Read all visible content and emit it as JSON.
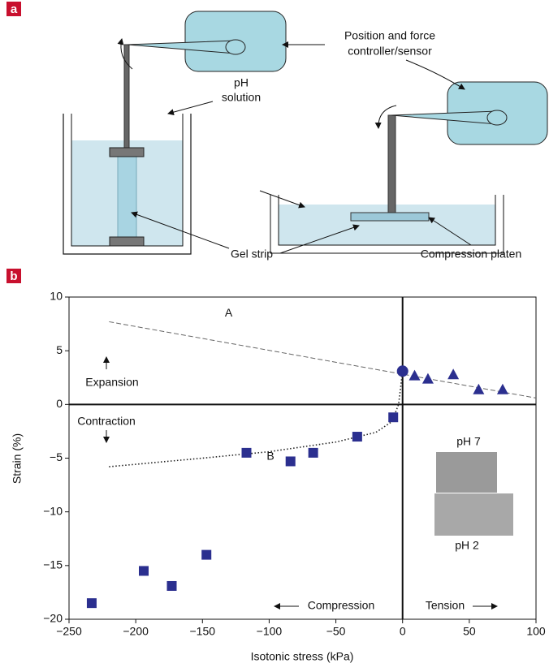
{
  "panel_a": {
    "label": "a",
    "controller_line1": "Position and force",
    "controller_line2": "controller/sensor",
    "solution_line1": "pH",
    "solution_line2": "solution",
    "gel_strip": "Gel strip",
    "platen": "Compression platen"
  },
  "panel_b_label": "b",
  "chart_data": {
    "type": "scatter",
    "x_label": "Isotonic stress (kPa)",
    "y_label": "Strain (%)",
    "xlim": [
      -250,
      100
    ],
    "ylim": [
      -20,
      10
    ],
    "xticks": [
      {
        "value": -250,
        "label": "−250"
      },
      {
        "value": -200,
        "label": "−200"
      },
      {
        "value": -150,
        "label": "−150"
      },
      {
        "value": -100,
        "label": "−100"
      },
      {
        "value": -50,
        "label": "−50"
      },
      0,
      50,
      100
    ],
    "yticks": [
      {
        "value": -20,
        "label": "−20"
      },
      {
        "value": -15,
        "label": "−15"
      },
      {
        "value": -10,
        "label": "−10"
      },
      {
        "value": -5,
        "label": "−5"
      },
      0,
      5,
      10
    ],
    "series": [
      {
        "name": "A",
        "color": "#666666",
        "line_style": "dashed",
        "x": [
          -220,
          100
        ],
        "values": [
          7.7,
          0.6
        ]
      },
      {
        "name": "B",
        "color": "#222222",
        "line_style": "dotted",
        "x": [
          -220,
          -150,
          -100,
          -50,
          -20,
          -8,
          -3,
          0
        ],
        "values": [
          -5.8,
          -5.0,
          -4.4,
          -3.5,
          -2.6,
          -1.6,
          0,
          3.1
        ]
      },
      {
        "color": "#2b2f8f",
        "marker": "square",
        "x": [
          -233,
          -194,
          -173,
          -147,
          -117,
          -84,
          -67,
          -34,
          -7
        ],
        "values": [
          -18.5,
          -15.5,
          -16.9,
          -14.0,
          -4.5,
          -5.3,
          -4.5,
          -3.0,
          -1.2
        ]
      },
      {
        "color": "#2b2f8f",
        "marker": "circle",
        "x": [
          0
        ],
        "values": [
          3.1
        ]
      },
      {
        "color": "#2b2f8f",
        "marker": "triangle",
        "x": [
          9,
          19,
          38,
          57,
          75
        ],
        "values": [
          2.7,
          2.4,
          2.8,
          1.4,
          1.4
        ]
      }
    ],
    "annotations": [
      "Expansion",
      "Contraction",
      "Compression",
      "Tension",
      "pH 7",
      "pH 2"
    ]
  }
}
